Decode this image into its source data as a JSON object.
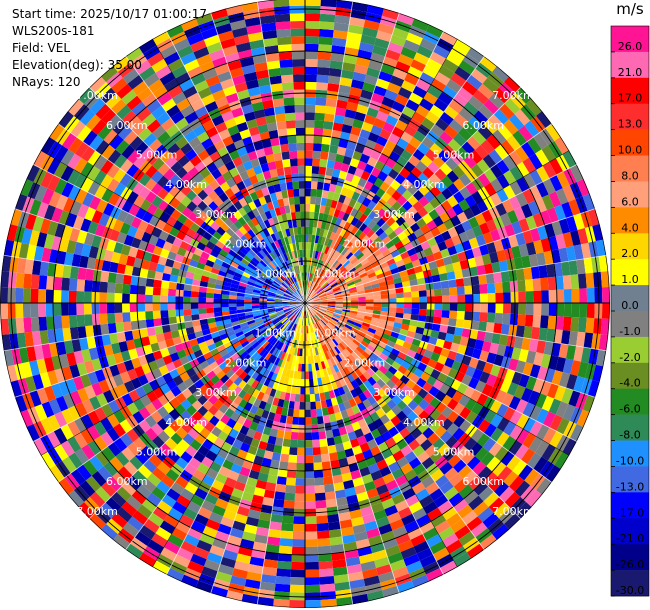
{
  "info": {
    "start_time": "Start time: 2025/10/17 01:00:17",
    "instrument": "WLS200s-181",
    "field": "Field: VEL",
    "elevation": "Elevation(deg): 35.00",
    "nrays": "NRays: 120"
  },
  "chart_data": {
    "type": "heatmap",
    "projection": "polar-ppi",
    "field": "VEL",
    "units": "m/s",
    "nrays": 120,
    "range_rings": [
      "1.00km",
      "2.00km",
      "3.00km",
      "4.00km",
      "5.00km",
      "6.00km",
      "7.00km"
    ],
    "colorbar": {
      "title": "m/s",
      "ticks": [
        "26.0",
        "21.0",
        "17.0",
        "13.0",
        "10.0",
        "8.0",
        "6.0",
        "4.0",
        "2.0",
        "1.0",
        "0.0",
        "-1.0",
        "-2.0",
        "-4.0",
        "-6.0",
        "-8.0",
        "-10.0",
        "-13.0",
        "-17.0",
        "-21.0",
        "-26.0",
        "-30.0"
      ],
      "colors": [
        "#ff1493",
        "#ff69b4",
        "#ff0000",
        "#ff2e2e",
        "#ff4500",
        "#ff7f50",
        "#ffa07a",
        "#ff8c00",
        "#ffd700",
        "#ffff00",
        "#708090",
        "#808080",
        "#9acd32",
        "#6b8e23",
        "#228b22",
        "#2e8b57",
        "#1e90ff",
        "#4169e1",
        "#0000ff",
        "#0000cd",
        "#00008b",
        "#191970"
      ]
    }
  }
}
